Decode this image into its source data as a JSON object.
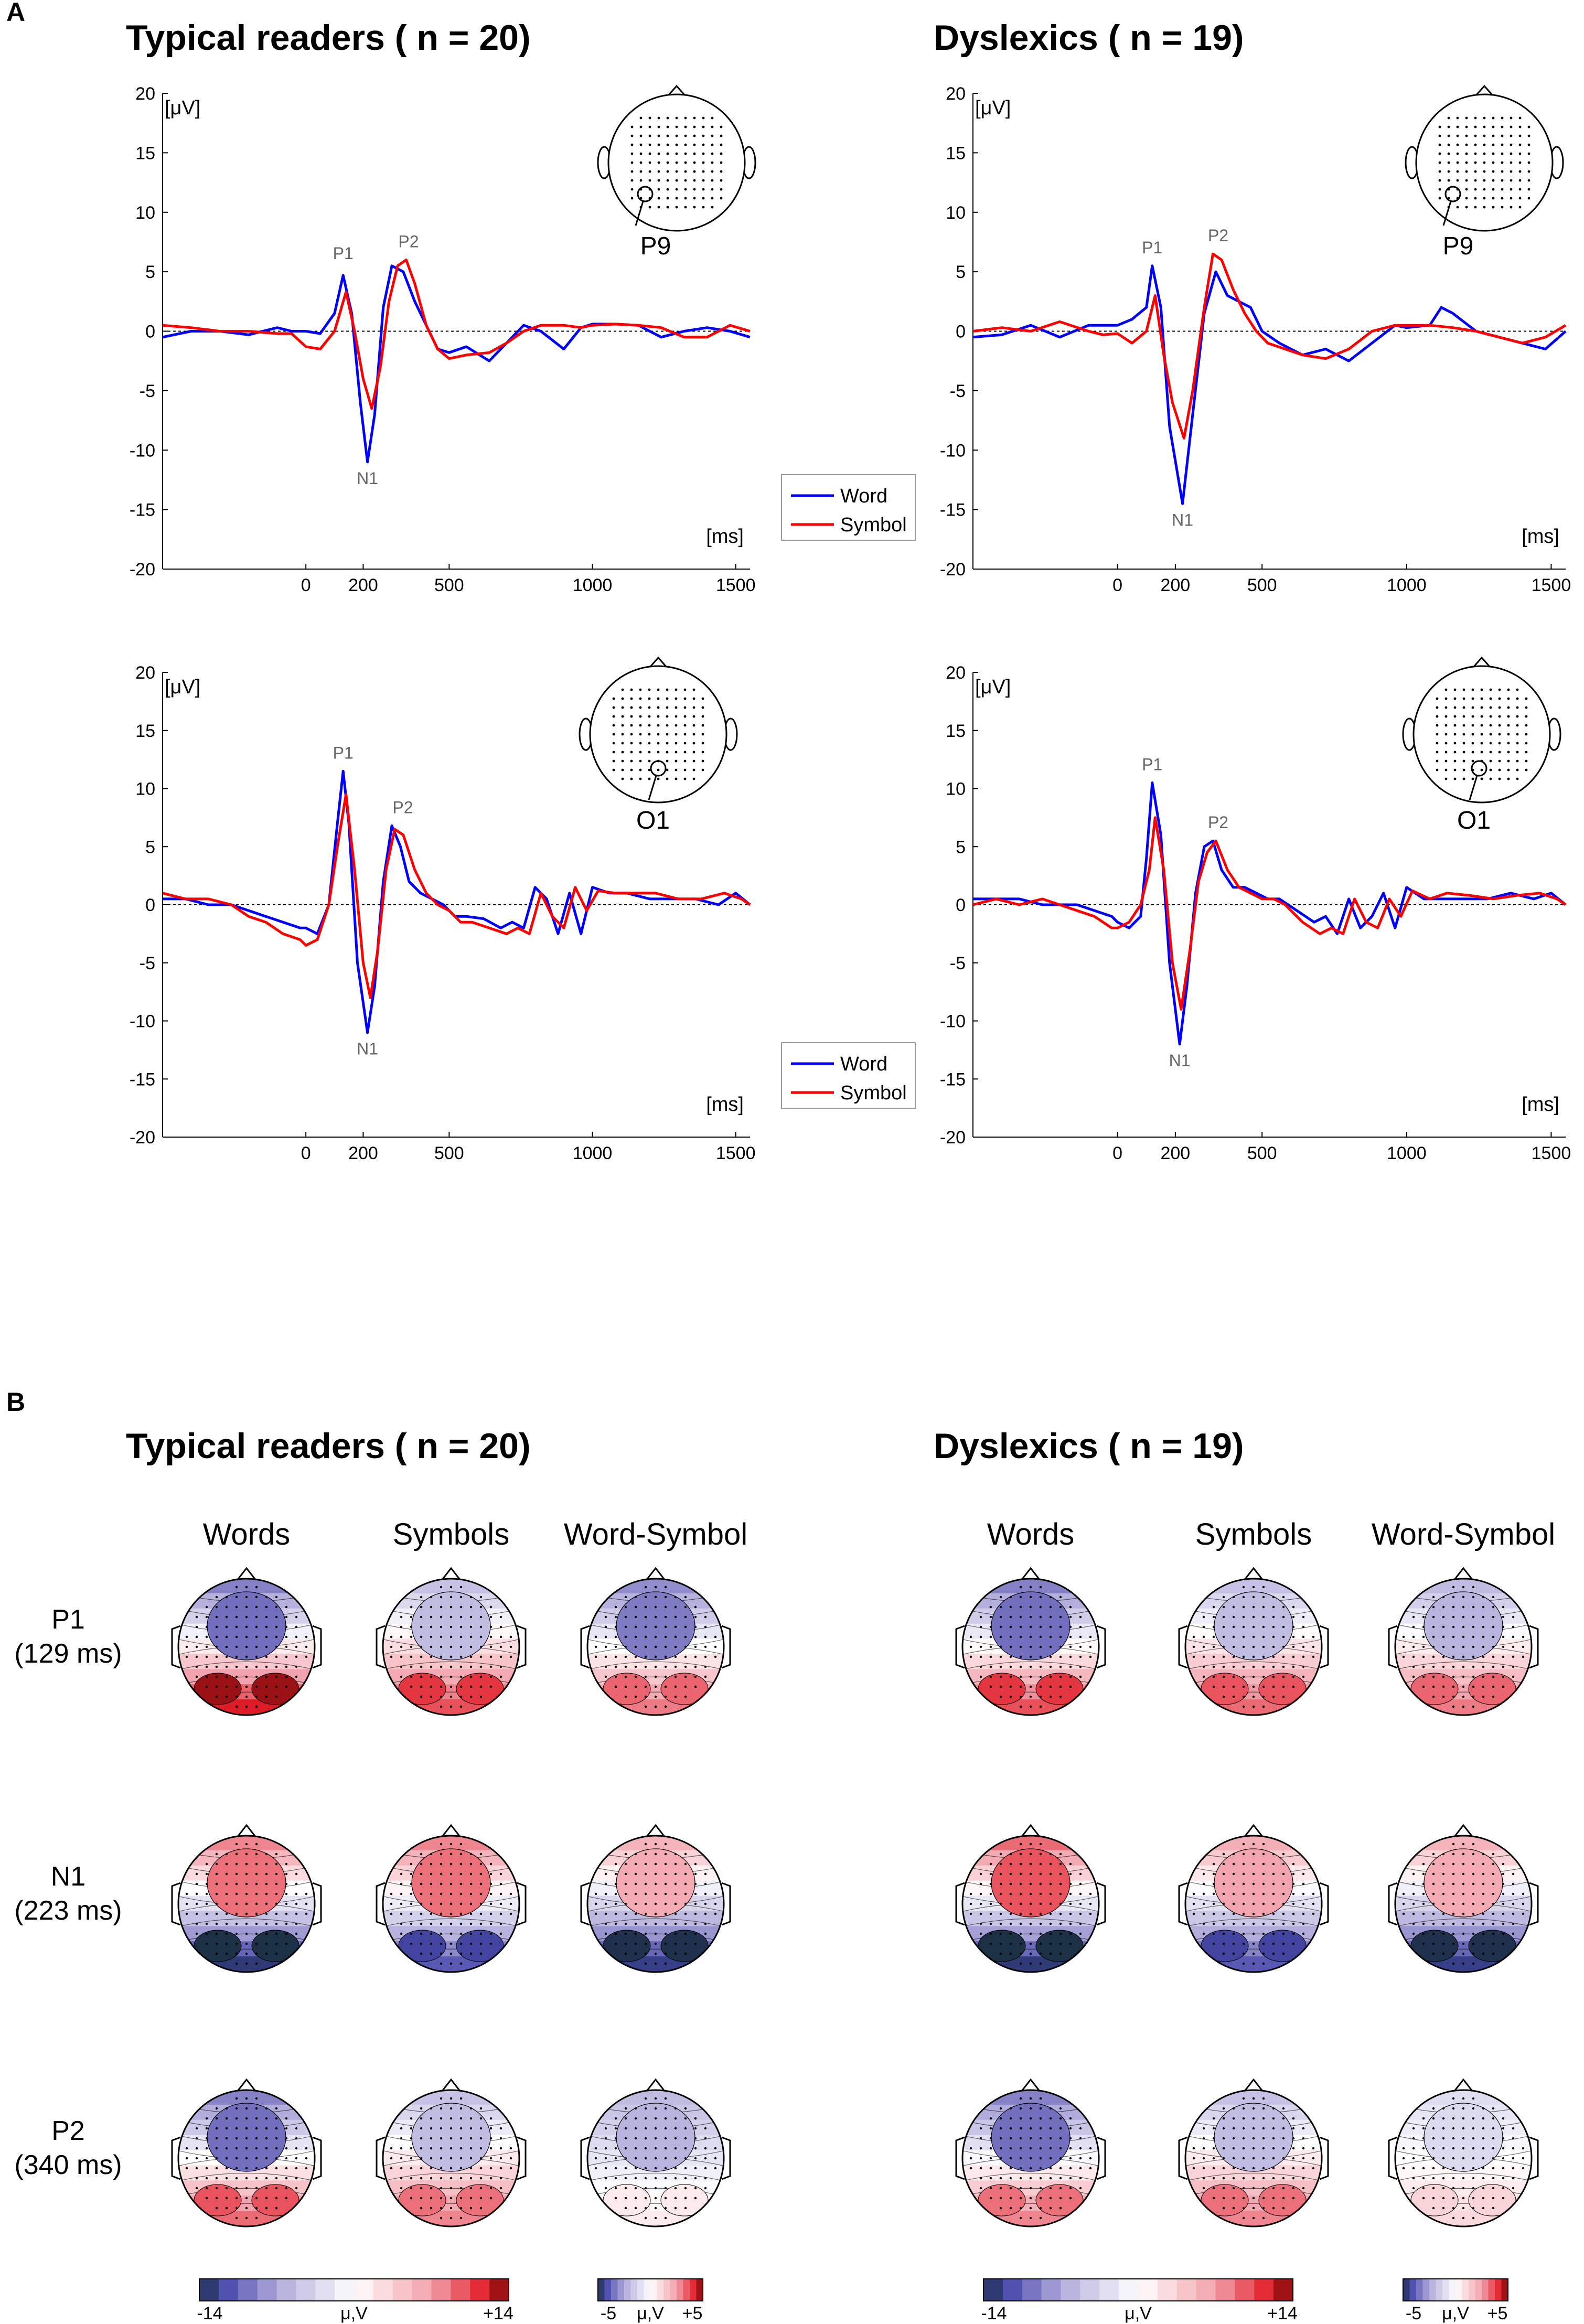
{
  "panel_labels": {
    "a": "A",
    "b": "B"
  },
  "groups": {
    "typical": "Typical readers ( n = 20)",
    "dyslexic": "Dyslexics ( n = 19)"
  },
  "colors": {
    "word": "#0000ff",
    "symbol": "#ff0000",
    "neg": "#3a3aa0",
    "pos": "#e0222a"
  },
  "icons": {
    "head": "scalp-head-icon",
    "electrode": "electrode-circle-icon"
  },
  "chart_data": [
    {
      "id": "typical-p9",
      "type": "line",
      "group": "Typical readers ( n = 20)",
      "electrode": "P9",
      "ylabel": "[μV]",
      "xlabel": "[ms]",
      "ylim": [
        -20,
        20
      ],
      "xlim": [
        -500,
        1550
      ],
      "yticks": [
        -20,
        -15,
        -10,
        -5,
        0,
        5,
        10,
        15,
        20
      ],
      "xticks": [
        0,
        200,
        500,
        1000,
        1500
      ],
      "legend": [
        "Word",
        "Symbol"
      ],
      "peaks": [
        {
          "label": "P1",
          "x": 130,
          "y": 5
        },
        {
          "label": "P2",
          "x": 340,
          "y": 6
        },
        {
          "label": "N1",
          "x": 215,
          "y": -11
        }
      ],
      "series": [
        {
          "name": "Word",
          "x": [
            -500,
            -400,
            -300,
            -200,
            -100,
            -50,
            0,
            50,
            100,
            130,
            160,
            190,
            215,
            240,
            270,
            300,
            340,
            380,
            420,
            460,
            500,
            560,
            640,
            700,
            760,
            820,
            900,
            960,
            1000,
            1080,
            1160,
            1240,
            1320,
            1400,
            1480,
            1550
          ],
          "y": [
            -0.5,
            0,
            0,
            -0.3,
            0.3,
            0,
            0,
            -0.2,
            1.5,
            4.7,
            1.5,
            -6,
            -11,
            -7,
            2,
            5.5,
            5,
            2.5,
            0.5,
            -1.5,
            -1.8,
            -1.3,
            -2.5,
            -1,
            0.5,
            0,
            -1.5,
            0.3,
            0.6,
            0.6,
            0.5,
            -0.5,
            0,
            0.3,
            0,
            -0.5
          ]
        },
        {
          "name": "Symbol",
          "x": [
            -500,
            -400,
            -300,
            -200,
            -100,
            -50,
            0,
            50,
            100,
            140,
            170,
            200,
            230,
            260,
            290,
            320,
            350,
            380,
            420,
            460,
            500,
            560,
            640,
            700,
            760,
            820,
            900,
            960,
            1000,
            1080,
            1160,
            1240,
            1320,
            1400,
            1480,
            1550
          ],
          "y": [
            0.5,
            0.3,
            0,
            0,
            -0.2,
            -0.2,
            -1.3,
            -1.5,
            0,
            3.3,
            0,
            -4,
            -6.5,
            -3,
            2.5,
            5.5,
            6,
            4,
            0.5,
            -1.5,
            -2.3,
            -2,
            -1.8,
            -1,
            0,
            0.5,
            0.5,
            0.3,
            0.5,
            0.6,
            0.5,
            0.3,
            -0.5,
            -0.5,
            0.5,
            0
          ]
        }
      ]
    },
    {
      "id": "dyslexic-p9",
      "type": "line",
      "group": "Dyslexics ( n = 19)",
      "electrode": "P9",
      "ylabel": "[μV]",
      "xlabel": "[ms]",
      "ylim": [
        -20,
        20
      ],
      "xlim": [
        -500,
        1550
      ],
      "yticks": [
        -20,
        -15,
        -10,
        -5,
        0,
        5,
        10,
        15,
        20
      ],
      "xticks": [
        0,
        200,
        500,
        1000,
        1500
      ],
      "legend": [
        "Word",
        "Symbol"
      ],
      "peaks": [
        {
          "label": "P1",
          "x": 120,
          "y": 5.5
        },
        {
          "label": "P2",
          "x": 330,
          "y": 6.5
        },
        {
          "label": "N1",
          "x": 225,
          "y": -14.5
        }
      ],
      "series": [
        {
          "name": "Word",
          "x": [
            -500,
            -400,
            -300,
            -200,
            -100,
            -50,
            0,
            50,
            100,
            120,
            150,
            180,
            225,
            260,
            300,
            340,
            380,
            420,
            460,
            500,
            560,
            640,
            720,
            800,
            880,
            960,
            1000,
            1080,
            1120,
            1160,
            1240,
            1320,
            1400,
            1480,
            1550
          ],
          "y": [
            -0.5,
            -0.3,
            0.5,
            -0.5,
            0.5,
            0.5,
            0.5,
            1,
            2,
            5.5,
            2,
            -8,
            -14.5,
            -7,
            1.5,
            5,
            3,
            2.5,
            2,
            0,
            -1,
            -2,
            -1.5,
            -2.5,
            -1,
            0.5,
            0.3,
            0.5,
            2,
            1.5,
            0,
            -0.5,
            -1,
            -1.5,
            0
          ]
        },
        {
          "name": "Symbol",
          "x": [
            -500,
            -400,
            -300,
            -200,
            -100,
            -50,
            0,
            50,
            100,
            130,
            160,
            190,
            230,
            260,
            300,
            330,
            360,
            400,
            440,
            480,
            520,
            580,
            640,
            720,
            800,
            880,
            960,
            1000,
            1080,
            1160,
            1240,
            1320,
            1400,
            1480,
            1550
          ],
          "y": [
            0,
            0.3,
            0,
            0.8,
            0,
            -0.3,
            -0.2,
            -1,
            0,
            3,
            -2,
            -6,
            -9,
            -5,
            2,
            6.5,
            6,
            3.5,
            1.5,
            0,
            -1,
            -1.5,
            -2,
            -2.3,
            -1.5,
            0,
            0.5,
            0.5,
            0.5,
            0.3,
            0,
            -0.5,
            -1,
            -0.5,
            0.5
          ]
        }
      ]
    },
    {
      "id": "typical-o1",
      "type": "line",
      "group": "Typical readers ( n = 20)",
      "electrode": "O1",
      "ylabel": "[μV]",
      "xlabel": "[ms]",
      "ylim": [
        -20,
        20
      ],
      "xlim": [
        -500,
        1550
      ],
      "yticks": [
        -20,
        -15,
        -10,
        -5,
        0,
        5,
        10,
        15,
        20
      ],
      "xticks": [
        0,
        200,
        500,
        1000,
        1500
      ],
      "legend": [
        "Word",
        "Symbol"
      ],
      "peaks": [
        {
          "label": "P1",
          "x": 130,
          "y": 11.5
        },
        {
          "label": "P2",
          "x": 320,
          "y": 6.8
        },
        {
          "label": "N1",
          "x": 215,
          "y": -11
        }
      ],
      "series": [
        {
          "name": "Word",
          "x": [
            -500,
            -420,
            -340,
            -260,
            -200,
            -140,
            -80,
            -20,
            0,
            40,
            80,
            110,
            130,
            150,
            180,
            215,
            240,
            270,
            300,
            330,
            360,
            400,
            440,
            480,
            520,
            560,
            620,
            680,
            720,
            760,
            800,
            840,
            880,
            920,
            960,
            1000,
            1060,
            1120,
            1200,
            1280,
            1360,
            1440,
            1500,
            1550
          ],
          "y": [
            0.5,
            0.5,
            0,
            0,
            -0.5,
            -1,
            -1.5,
            -2,
            -2,
            -2.5,
            0,
            7,
            11.5,
            7,
            -5,
            -11,
            -7,
            2,
            6.8,
            5,
            2,
            1,
            0.5,
            0,
            -1,
            -1,
            -1.2,
            -2,
            -1.5,
            -2,
            1.5,
            0.5,
            -2.5,
            1,
            -2.5,
            1.5,
            1,
            1,
            0.5,
            0.5,
            0.5,
            0,
            1,
            0
          ]
        },
        {
          "name": "Symbol",
          "x": [
            -500,
            -420,
            -340,
            -260,
            -200,
            -140,
            -80,
            -20,
            0,
            40,
            80,
            110,
            140,
            170,
            200,
            225,
            250,
            280,
            310,
            340,
            380,
            420,
            460,
            500,
            540,
            580,
            640,
            700,
            740,
            780,
            820,
            860,
            900,
            940,
            980,
            1020,
            1080,
            1140,
            1220,
            1300,
            1380,
            1460,
            1520,
            1550
          ],
          "y": [
            1,
            0.5,
            0.5,
            0,
            -1,
            -1.5,
            -2.5,
            -3,
            -3.5,
            -3,
            0,
            5,
            9.5,
            3,
            -5,
            -8,
            -4,
            3,
            6.5,
            6,
            3,
            1,
            0,
            -0.5,
            -1.5,
            -1.5,
            -2,
            -2.5,
            -2,
            -2.5,
            1,
            -1,
            -2,
            1.5,
            -0.5,
            1.2,
            1,
            1,
            1,
            0.5,
            0.5,
            1,
            0.5,
            0
          ]
        }
      ]
    },
    {
      "id": "dyslexic-o1",
      "type": "line",
      "group": "Dyslexics ( n = 19)",
      "electrode": "O1",
      "ylabel": "[μV]",
      "xlabel": "[ms]",
      "ylim": [
        -20,
        20
      ],
      "xlim": [
        -500,
        1550
      ],
      "yticks": [
        -20,
        -15,
        -10,
        -5,
        0,
        5,
        10,
        15,
        20
      ],
      "xticks": [
        0,
        200,
        500,
        1000,
        1500
      ],
      "legend": [
        "Word",
        "Symbol"
      ],
      "peaks": [
        {
          "label": "P1",
          "x": 120,
          "y": 10.5
        },
        {
          "label": "P2",
          "x": 330,
          "y": 5.5
        },
        {
          "label": "N1",
          "x": 215,
          "y": -12
        }
      ],
      "series": [
        {
          "name": "Word",
          "x": [
            -500,
            -420,
            -340,
            -260,
            -200,
            -140,
            -80,
            -20,
            0,
            40,
            80,
            100,
            120,
            150,
            180,
            215,
            240,
            270,
            300,
            330,
            360,
            400,
            440,
            480,
            520,
            560,
            620,
            680,
            720,
            760,
            800,
            840,
            880,
            920,
            960,
            1000,
            1060,
            1120,
            1200,
            1280,
            1360,
            1440,
            1500,
            1550
          ],
          "y": [
            0.5,
            0.5,
            0.5,
            0,
            0,
            0,
            -0.5,
            -1,
            -1.5,
            -2,
            -1,
            4,
            10.5,
            6,
            -5,
            -12,
            -7,
            1,
            5,
            5.5,
            3,
            1.5,
            1.5,
            1,
            0.5,
            0.5,
            -0.5,
            -1.5,
            -1,
            -2.5,
            0.5,
            -2,
            -1,
            1,
            -2,
            1.5,
            0.5,
            0.5,
            0.5,
            0.5,
            1,
            0.5,
            1,
            0
          ]
        },
        {
          "name": "Symbol",
          "x": [
            -500,
            -420,
            -340,
            -260,
            -200,
            -140,
            -80,
            -20,
            0,
            40,
            80,
            110,
            130,
            160,
            190,
            220,
            250,
            280,
            310,
            340,
            380,
            420,
            460,
            500,
            540,
            580,
            640,
            700,
            740,
            780,
            820,
            860,
            900,
            940,
            980,
            1020,
            1080,
            1140,
            1220,
            1300,
            1380,
            1460,
            1520,
            1550
          ],
          "y": [
            0,
            0.5,
            0,
            0.5,
            0,
            -0.5,
            -1,
            -2,
            -2,
            -1.5,
            0,
            3,
            7.5,
            3,
            -5,
            -9,
            -4,
            2,
            4.5,
            5.5,
            3,
            1.5,
            1,
            0.5,
            0.5,
            0,
            -1.5,
            -2.5,
            -2,
            -2.5,
            0.5,
            -1.5,
            -2,
            0.5,
            -1,
            1.2,
            0.5,
            1,
            0.8,
            0.5,
            0.8,
            1,
            0.5,
            0
          ]
        }
      ]
    },
    {
      "id": "topomaps",
      "type": "heatmap",
      "column_labels": [
        "Words",
        "Symbols",
        "Word-Symbol"
      ],
      "row_labels": [
        [
          "P1",
          "(129 ms)"
        ],
        [
          "N1",
          "(223 ms)"
        ],
        [
          "P2",
          "(340 ms)"
        ]
      ],
      "colorbars": [
        {
          "min_label": "-14",
          "mid_label": "μ,V",
          "max_label": "+14",
          "range": [
            -14,
            14
          ]
        },
        {
          "min_label": "-5",
          "mid_label": "μ,V",
          "max_label": "+5",
          "range": [
            -5,
            5
          ]
        }
      ],
      "maps": {
        "typical": [
          [
            {
              "front": -9,
              "back": 12
            },
            {
              "front": -5,
              "back": 10
            },
            {
              "front": -3,
              "back": 3
            }
          ],
          [
            {
              "front": 8,
              "back": -13
            },
            {
              "front": 8,
              "back": -11
            },
            {
              "front": 2,
              "back": -4.5
            }
          ],
          [
            {
              "front": -9,
              "back": 9
            },
            {
              "front": -5,
              "back": 8
            },
            {
              "front": -2,
              "back": 0.5
            }
          ]
        ],
        "dyslexic": [
          [
            {
              "front": -9,
              "back": 10
            },
            {
              "front": -5,
              "back": 9
            },
            {
              "front": -2,
              "back": 3
            }
          ],
          [
            {
              "front": 9,
              "back": -13
            },
            {
              "front": 6,
              "back": -11
            },
            {
              "front": 2,
              "back": -4.5
            }
          ],
          [
            {
              "front": -9,
              "back": 8
            },
            {
              "front": -5,
              "back": 8
            },
            {
              "front": -1,
              "back": 1
            }
          ]
        ]
      }
    }
  ]
}
